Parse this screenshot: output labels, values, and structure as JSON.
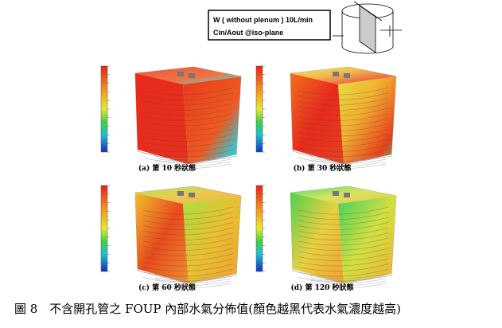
{
  "legend_box": {
    "line1": "W ( without plenum ) 10L/min",
    "line2": "Cin/Aout @iso-plane"
  },
  "panels": [
    {
      "caption": "(a) 第 10 秒狀態"
    },
    {
      "caption": "(b) 第 30 秒狀態"
    },
    {
      "caption": "(c) 第 60 秒狀態"
    },
    {
      "caption": "(d) 第 120 秒狀態"
    }
  ],
  "figure_caption": "圖 8　不含開孔管之 FOUP 內部水氣分佈值(顏色越黑代表水氣濃度越高)"
}
